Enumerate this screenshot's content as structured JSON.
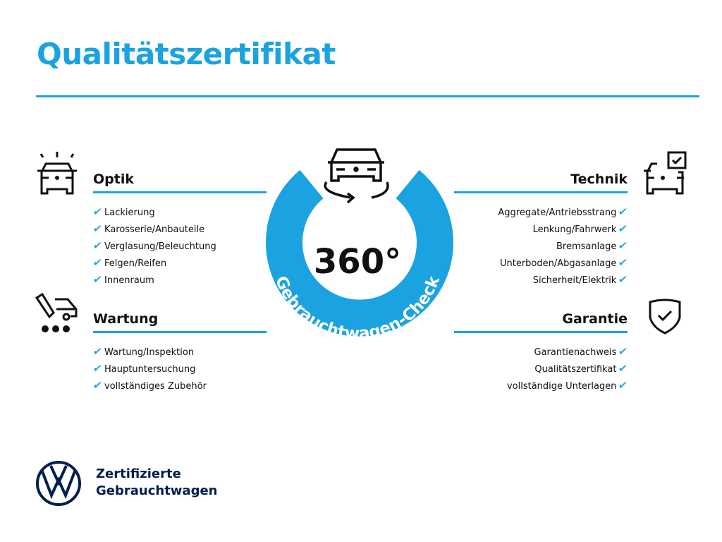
{
  "title": "Qualitätszertifikat",
  "center": {
    "big": "360°",
    "ring_text": "Gebrauchtwagen-Check"
  },
  "sections": {
    "optik": {
      "title": "Optik",
      "items": [
        "Lackierung",
        "Karosserie/Anbauteile",
        "Verglasung/Beleuchtung",
        "Felgen/Reifen",
        "Innenraum"
      ]
    },
    "wartung": {
      "title": "Wartung",
      "items": [
        "Wartung/Inspektion",
        "Hauptuntersuchung",
        "vollständiges Zubehör"
      ]
    },
    "technik": {
      "title": "Technik",
      "items": [
        "Aggregate/Antriebsstrang",
        "Lenkung/Fahrwerk",
        "Bremsanlage",
        "Unterboden/Abgasanlage",
        "Sicherheit/Elektrik"
      ]
    },
    "garantie": {
      "title": "Garantie",
      "items": [
        "Garantienachweis",
        "Qualitätszertifikat",
        "vollständige Unterlagen"
      ]
    }
  },
  "check_glyph": "✔",
  "brand": {
    "line1": "Zertifizierte",
    "line2": "Gebrauchtwagen"
  },
  "colors": {
    "accent": "#1ba3e1",
    "navy": "#001e50"
  }
}
